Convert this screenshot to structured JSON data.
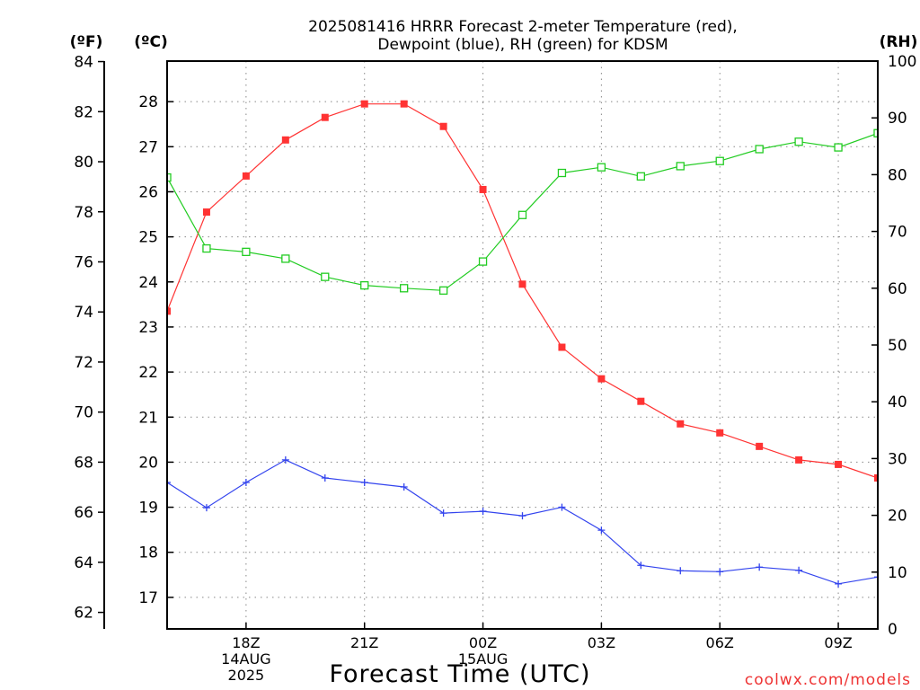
{
  "chart_data": {
    "type": "line",
    "title": [
      "2025081416 HRRR Forecast 2-meter Temperature (red),",
      "Dewpoint (blue), RH (green) for KDSM"
    ],
    "xlabel": "Forecast Time (UTC)",
    "units": {
      "fahrenheit": "(ºF)",
      "celsius": "(ºC)",
      "rh": "(RH)"
    },
    "watermark": "coolwx.com/models",
    "x_hours": [
      0,
      1,
      2,
      3,
      4,
      5,
      6,
      7,
      8,
      9,
      10,
      11,
      12,
      13,
      14,
      15,
      16,
      17,
      18
    ],
    "x_ticks": [
      {
        "hour": 2,
        "lines": [
          "18Z",
          "14AUG",
          "2025"
        ]
      },
      {
        "hour": 5,
        "lines": [
          "21Z"
        ]
      },
      {
        "hour": 8,
        "lines": [
          "00Z",
          "15AUG"
        ]
      },
      {
        "hour": 11,
        "lines": [
          "03Z"
        ]
      },
      {
        "hour": 14,
        "lines": [
          "06Z"
        ]
      },
      {
        "hour": 17,
        "lines": [
          "09Z"
        ]
      }
    ],
    "ylim_celsius": [
      16.3,
      28.9
    ],
    "ylim_rh": [
      0,
      100
    ],
    "celsius_ticks": [
      17,
      18,
      19,
      20,
      21,
      22,
      23,
      24,
      25,
      26,
      27,
      28
    ],
    "fahrenheit_ticks": [
      62,
      64,
      66,
      68,
      70,
      72,
      74,
      76,
      78,
      80,
      82,
      84
    ],
    "rh_ticks": [
      0,
      10,
      20,
      30,
      40,
      50,
      60,
      70,
      80,
      90,
      100
    ],
    "grid": true,
    "series": [
      {
        "name": "Temperature",
        "axis": "celsius",
        "color": "#ff3333",
        "marker": "filled-square",
        "values": [
          23.35,
          25.55,
          26.35,
          27.15,
          27.65,
          27.95,
          27.95,
          27.45,
          26.05,
          23.95,
          22.55,
          21.85,
          21.35,
          20.85,
          20.65,
          20.35,
          20.05,
          19.95,
          19.65
        ]
      },
      {
        "name": "Dewpoint",
        "axis": "celsius",
        "color": "#3344ee",
        "marker": "plus",
        "values": [
          19.55,
          18.99,
          19.55,
          20.05,
          19.65,
          19.55,
          19.45,
          18.87,
          18.91,
          18.81,
          19.0,
          18.49,
          17.71,
          17.59,
          17.57,
          17.67,
          17.6,
          17.3,
          17.45
        ]
      },
      {
        "name": "RH",
        "axis": "rh",
        "color": "#22cc22",
        "marker": "open-square",
        "values": [
          79.5,
          67.0,
          66.4,
          65.2,
          62.0,
          60.5,
          60.0,
          59.6,
          64.7,
          72.9,
          80.3,
          81.3,
          79.7,
          81.5,
          82.4,
          84.5,
          85.8,
          84.8,
          87.3
        ]
      }
    ]
  }
}
